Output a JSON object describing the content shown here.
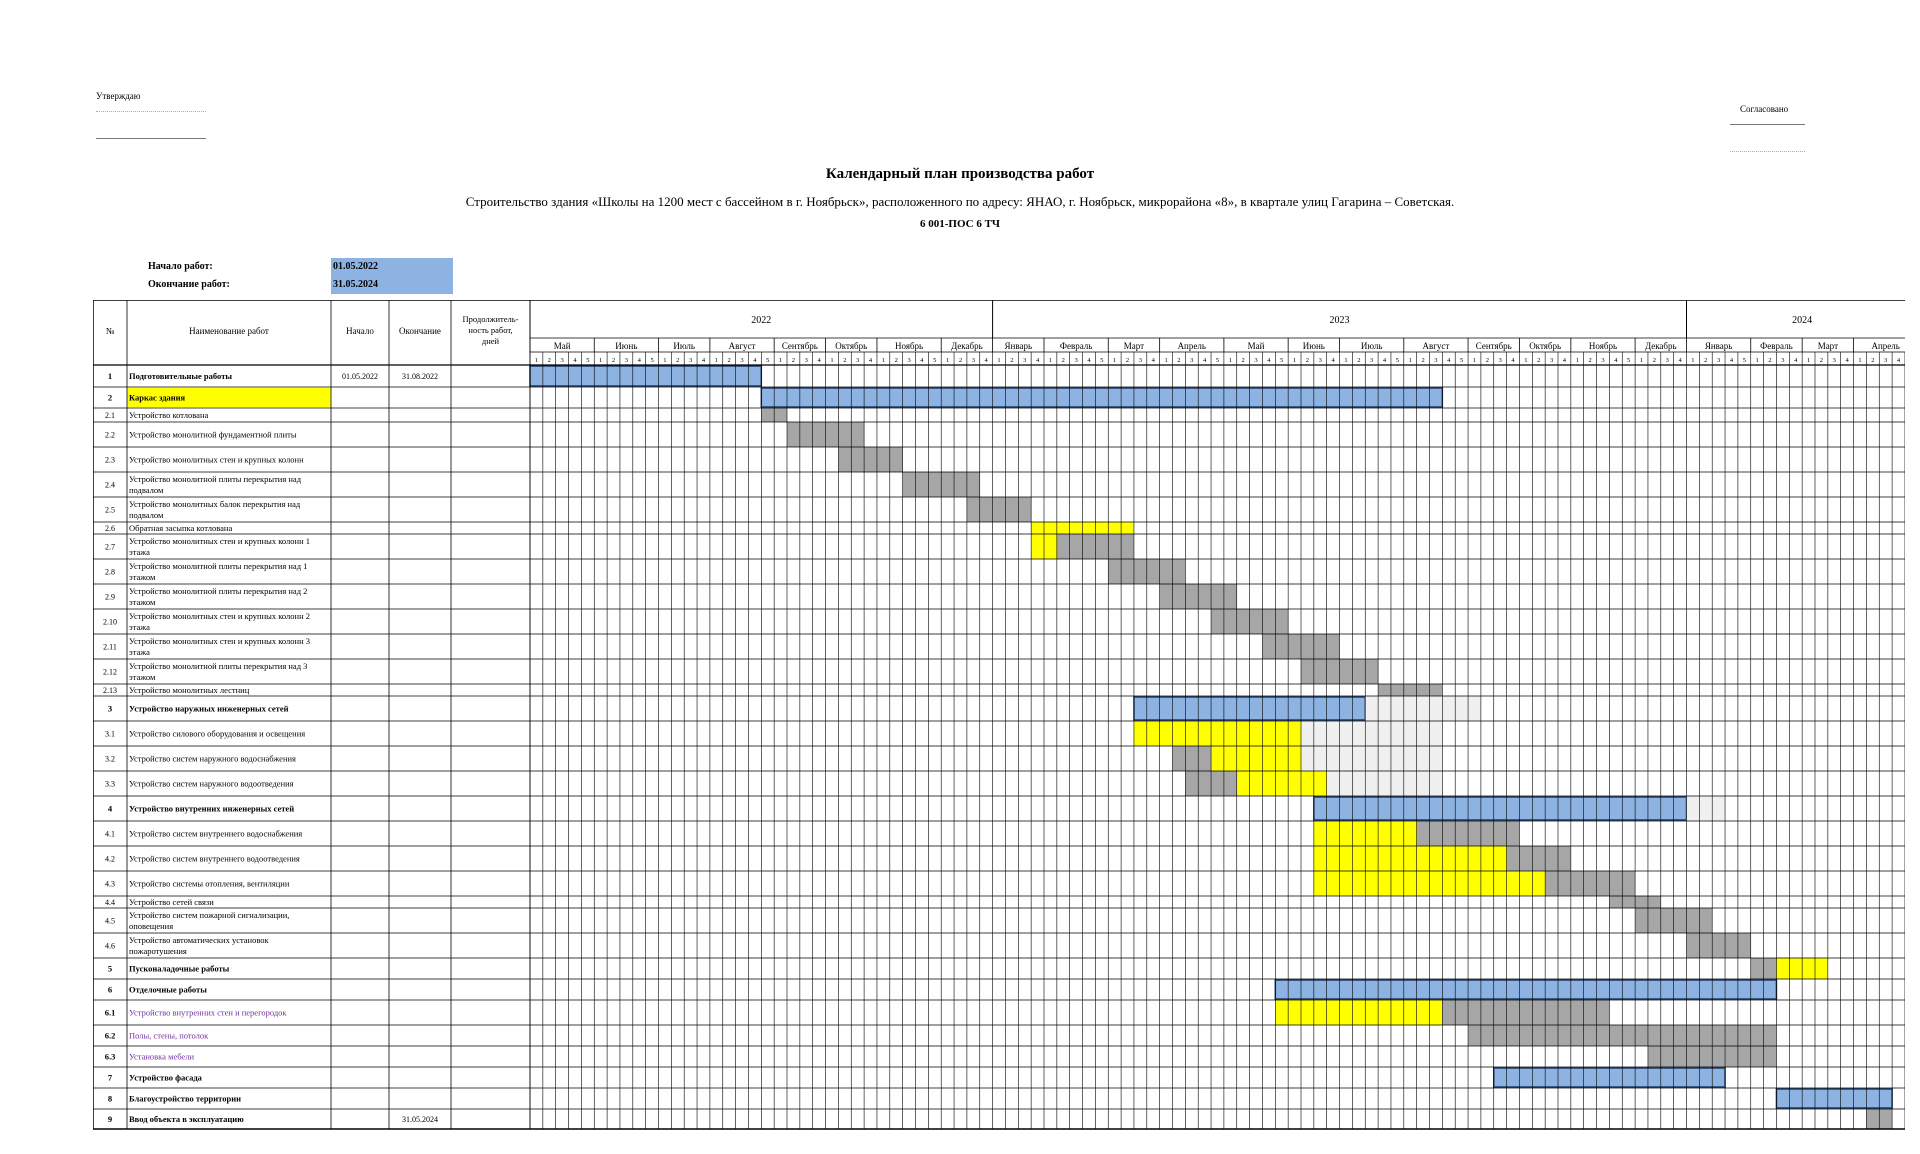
{
  "header": {
    "approve_label": "Утверждаю",
    "agree_label": "Согласовано",
    "title": "Календарный план производства работ",
    "subtitle": "Строительство здания «Школы на 1200 мест с бассейном в г. Ноябрьск», расположенного по адресу: ЯНАО, г. Ноябрьск, микрорайона «8», в квартале улиц Гагарина – Советская.",
    "code": "6 001-ПОС 6 ТЧ"
  },
  "dates": {
    "start_label": "Начало работ:",
    "start_value": "01.05.2022",
    "end_label": "Окончание работ:",
    "end_value": "31.05.2024"
  },
  "columns": {
    "num": "№",
    "name": "Наименование работ",
    "start": "Начало",
    "end": "Окончание",
    "duration": "Продолжитель-ность работ, дней"
  },
  "colors": {
    "plan": "#8db3e2",
    "yellow": "#ffff00",
    "gray": "#a6a6a6",
    "light": "#f0f0f0",
    "header_highlight": "#ffff00",
    "border": "#000000"
  },
  "years": [
    {
      "label": "2022",
      "months": 8
    },
    {
      "label": "2023",
      "months": 12
    },
    {
      "label": "2024",
      "months": 4
    }
  ],
  "months": [
    {
      "label": "Май",
      "weeks": 5
    },
    {
      "label": "Июнь",
      "weeks": 5
    },
    {
      "label": "Июль",
      "weeks": 4
    },
    {
      "label": "Август",
      "weeks": 5
    },
    {
      "label": "Сентябрь",
      "weeks": 4
    },
    {
      "label": "Октябрь",
      "weeks": 4
    },
    {
      "label": "Ноябрь",
      "weeks": 5
    },
    {
      "label": "Декабрь",
      "weeks": 4
    },
    {
      "label": "Январь",
      "weeks": 4
    },
    {
      "label": "Февраль",
      "weeks": 5
    },
    {
      "label": "Март",
      "weeks": 4
    },
    {
      "label": "Апрель",
      "weeks": 5
    },
    {
      "label": "Май",
      "weeks": 5
    },
    {
      "label": "Июнь",
      "weeks": 4
    },
    {
      "label": "Июль",
      "weeks": 5
    },
    {
      "label": "Август",
      "weeks": 5
    },
    {
      "label": "Сентябрь",
      "weeks": 4
    },
    {
      "label": "Октябрь",
      "weeks": 4
    },
    {
      "label": "Ноябрь",
      "weeks": 5
    },
    {
      "label": "Декабрь",
      "weeks": 4
    },
    {
      "label": "Январь",
      "weeks": 5
    },
    {
      "label": "Февраль",
      "weeks": 4
    },
    {
      "label": "Март",
      "weeks": 4
    },
    {
      "label": "Апрель",
      "weeks": 5
    }
  ],
  "rows": [
    {
      "num": "1",
      "name": "Подготовительные работы",
      "bold": true,
      "start": "01.05.2022",
      "end": "31.08.2022",
      "duration": "",
      "bars": [
        {
          "type": "plan",
          "from": 0,
          "to": 18
        }
      ]
    },
    {
      "num": "2",
      "name": "Каркас здания",
      "bold": true,
      "highlight": true,
      "start": "",
      "end": "",
      "duration": "",
      "bars": [
        {
          "type": "plan",
          "from": 18,
          "to": 71
        }
      ]
    },
    {
      "num": "2.1",
      "name": "Устройство котлована",
      "start": "",
      "end": "",
      "duration": "",
      "bars": [
        {
          "type": "gray",
          "from": 18,
          "to": 20
        }
      ]
    },
    {
      "num": "2.2",
      "name": "Устройство монолитной фундаментной плиты",
      "start": "",
      "end": "",
      "duration": "",
      "bars": [
        {
          "type": "gray",
          "from": 20,
          "to": 26
        }
      ]
    },
    {
      "num": "2.3",
      "name": "Устройство монолитных стен и крупных колонн",
      "start": "",
      "end": "",
      "duration": "",
      "bars": [
        {
          "type": "gray",
          "from": 24,
          "to": 29
        }
      ]
    },
    {
      "num": "2.4",
      "name": "Устройство монолитной плиты перекрытия над подвалом",
      "start": "",
      "end": "",
      "duration": "",
      "bars": [
        {
          "type": "gray",
          "from": 29,
          "to": 35
        }
      ]
    },
    {
      "num": "2.5",
      "name": "Устройство монолитных балок перекрытия над подвалом",
      "start": "",
      "end": "",
      "duration": "",
      "bars": [
        {
          "type": "gray",
          "from": 34,
          "to": 39
        }
      ]
    },
    {
      "num": "2.6",
      "name": "Обратная засыпка котлована",
      "start": "",
      "end": "",
      "duration": "",
      "bars": [
        {
          "type": "yellow",
          "from": 39,
          "to": 47
        }
      ]
    },
    {
      "num": "2.7",
      "name": "Устройство монолитных стен и крупных колонн 1 этажа",
      "start": "",
      "end": "",
      "duration": "",
      "bars": [
        {
          "type": "yellow",
          "from": 39,
          "to": 41
        },
        {
          "type": "gray",
          "from": 41,
          "to": 47
        }
      ]
    },
    {
      "num": "2.8",
      "name": "Устройство монолитной плиты перекрытия над 1 этажом",
      "start": "",
      "end": "",
      "duration": "",
      "bars": [
        {
          "type": "gray",
          "from": 45,
          "to": 51
        }
      ]
    },
    {
      "num": "2.9",
      "name": "Устройство монолитной плиты перекрытия над 2 этажом",
      "start": "",
      "end": "",
      "duration": "",
      "bars": [
        {
          "type": "gray",
          "from": 49,
          "to": 55
        }
      ]
    },
    {
      "num": "2.10",
      "name": "Устройство монолитных стен и крупных колонн 2 этажа",
      "start": "",
      "end": "",
      "duration": "",
      "bars": [
        {
          "type": "gray",
          "from": 53,
          "to": 59
        }
      ]
    },
    {
      "num": "2.11",
      "name": "Устройство монолитных стен и крупных колонн 3 этажа",
      "start": "",
      "end": "",
      "duration": "",
      "bars": [
        {
          "type": "gray",
          "from": 57,
          "to": 63
        }
      ]
    },
    {
      "num": "2.12",
      "name": "Устройство монолитной плиты перекрытия над 3 этажом",
      "start": "",
      "end": "",
      "duration": "",
      "bars": [
        {
          "type": "gray",
          "from": 60,
          "to": 66
        }
      ]
    },
    {
      "num": "2.13",
      "name": "Устройство монолитных лестниц",
      "start": "",
      "end": "",
      "duration": "",
      "bars": [
        {
          "type": "gray",
          "from": 66,
          "to": 71
        }
      ]
    },
    {
      "num": "3",
      "name": "Устройство наружных инженерных сетей",
      "bold": true,
      "start": "",
      "end": "",
      "duration": "",
      "bars": [
        {
          "type": "plan",
          "from": 47,
          "to": 65
        },
        {
          "type": "light",
          "from": 65,
          "to": 74
        }
      ]
    },
    {
      "num": "3.1",
      "name": "Устройство силового оборудования и освещения",
      "start": "",
      "end": "",
      "duration": "",
      "bars": [
        {
          "type": "yellow",
          "from": 47,
          "to": 60
        },
        {
          "type": "light",
          "from": 60,
          "to": 71
        }
      ]
    },
    {
      "num": "3.2",
      "name": "Устройство систем наружного водоснабжения",
      "start": "",
      "end": "",
      "duration": "",
      "bars": [
        {
          "type": "gray",
          "from": 50,
          "to": 53
        },
        {
          "type": "yellow",
          "from": 53,
          "to": 60
        },
        {
          "type": "light",
          "from": 60,
          "to": 71
        }
      ]
    },
    {
      "num": "3.3",
      "name": "Устройство систем наружного водоотведения",
      "start": "",
      "end": "",
      "duration": "",
      "bars": [
        {
          "type": "gray",
          "from": 51,
          "to": 55
        },
        {
          "type": "yellow",
          "from": 55,
          "to": 62
        },
        {
          "type": "light",
          "from": 62,
          "to": 71
        }
      ]
    },
    {
      "num": "4",
      "name": "Устройство внутренних инженерных сетей",
      "bold": true,
      "start": "",
      "end": "",
      "duration": "",
      "bars": [
        {
          "type": "plan",
          "from": 61,
          "to": 90
        },
        {
          "type": "light",
          "from": 90,
          "to": 93
        }
      ]
    },
    {
      "num": "4.1",
      "name": "Устройство систем внутреннего водоснабжения",
      "start": "",
      "end": "",
      "duration": "",
      "bars": [
        {
          "type": "yellow",
          "from": 61,
          "to": 69
        },
        {
          "type": "gray",
          "from": 69,
          "to": 77
        }
      ]
    },
    {
      "num": "4.2",
      "name": "Устройство систем внутреннего водоотведения",
      "start": "",
      "end": "",
      "duration": "",
      "bars": [
        {
          "type": "yellow",
          "from": 61,
          "to": 76
        },
        {
          "type": "gray",
          "from": 76,
          "to": 81
        }
      ]
    },
    {
      "num": "4.3",
      "name": "Устройство системы отопления, вентиляции",
      "start": "",
      "end": "",
      "duration": "",
      "bars": [
        {
          "type": "yellow",
          "from": 61,
          "to": 79
        },
        {
          "type": "gray",
          "from": 79,
          "to": 86
        }
      ]
    },
    {
      "num": "4.4",
      "name": "Устройство сетей связи",
      "start": "",
      "end": "",
      "duration": "",
      "bars": [
        {
          "type": "gray",
          "from": 84,
          "to": 88
        }
      ]
    },
    {
      "num": "4.5",
      "name": "Устройство систем пожарной сигнализации, оповещения",
      "start": "",
      "end": "",
      "duration": "",
      "bars": [
        {
          "type": "gray",
          "from": 86,
          "to": 92
        }
      ]
    },
    {
      "num": "4.6",
      "name": "Устройство автоматических установок пожаротушения",
      "start": "",
      "end": "",
      "duration": "",
      "bars": [
        {
          "type": "gray",
          "from": 90,
          "to": 95
        }
      ]
    },
    {
      "num": "5",
      "name": "Пусконаладочные работы",
      "bold": true,
      "start": "",
      "end": "",
      "duration": "",
      "bars": [
        {
          "type": "gray",
          "from": 95,
          "to": 97
        },
        {
          "type": "yellow",
          "from": 97,
          "to": 101
        }
      ]
    },
    {
      "num": "6",
      "name": "Отделочные работы",
      "bold": true,
      "start": "",
      "end": "",
      "duration": "",
      "bars": [
        {
          "type": "plan",
          "from": 58,
          "to": 97
        }
      ]
    },
    {
      "num": "6.1",
      "name": "Устройство внутренних стен и перегородок",
      "purple": true,
      "boldnum": true,
      "start": "",
      "end": "",
      "duration": "",
      "bars": [
        {
          "type": "yellow",
          "from": 58,
          "to": 71
        },
        {
          "type": "gray",
          "from": 71,
          "to": 84
        }
      ]
    },
    {
      "num": "6.2",
      "name": "Полы, стены, потолок",
      "purple": true,
      "boldnum": true,
      "start": "",
      "end": "",
      "duration": "",
      "bars": [
        {
          "type": "gray",
          "from": 73,
          "to": 97
        }
      ]
    },
    {
      "num": "6.3",
      "name": "Установка мебели",
      "purple": true,
      "boldnum": true,
      "start": "",
      "end": "",
      "duration": "",
      "bars": [
        {
          "type": "gray",
          "from": 87,
          "to": 97
        }
      ]
    },
    {
      "num": "7",
      "name": "Устройство фасада",
      "bold": true,
      "start": "",
      "end": "",
      "duration": "",
      "bars": [
        {
          "type": "plan",
          "from": 75,
          "to": 93
        }
      ]
    },
    {
      "num": "8",
      "name": "Благоустройство территории",
      "bold": true,
      "start": "",
      "end": "",
      "duration": "",
      "bars": [
        {
          "type": "plan",
          "from": 97,
          "to": 106
        }
      ]
    },
    {
      "num": "9",
      "name": "Ввод объекта в эксплуатацию",
      "bold": true,
      "start": "",
      "end": "31.05.2024",
      "duration": "",
      "bars": [
        {
          "type": "gray",
          "from": 104,
          "to": 106
        }
      ]
    }
  ]
}
